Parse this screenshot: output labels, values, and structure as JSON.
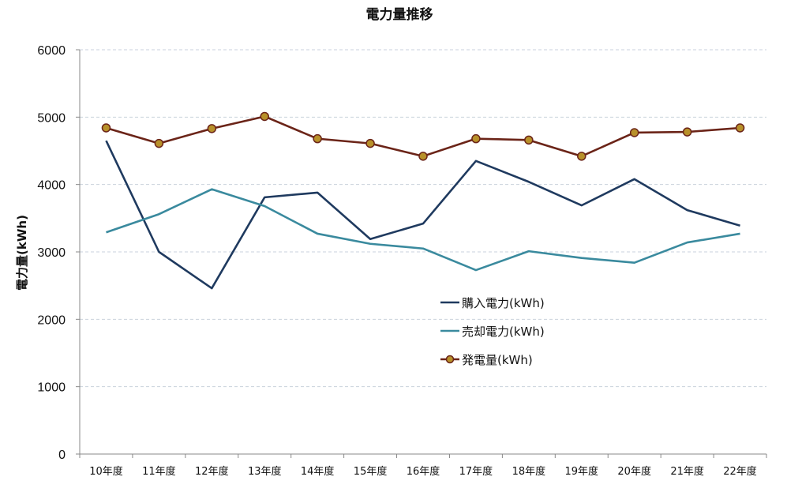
{
  "chart_data": {
    "type": "line",
    "title": "電力量推移",
    "xlabel": "",
    "ylabel": "電力量(kWh)",
    "ylim": [
      0,
      6000
    ],
    "yticks": [
      0,
      1000,
      2000,
      3000,
      4000,
      5000,
      6000
    ],
    "grid": "horizontal dashed",
    "legend_position": "center-right",
    "categories": [
      "10年度",
      "11年度",
      "12年度",
      "13年度",
      "14年度",
      "15年度",
      "16年度",
      "17年度",
      "18年度",
      "19年度",
      "20年度",
      "21年度",
      "22年度"
    ],
    "series": [
      {
        "name": "購入電力(kWh)",
        "color": "#1f3a5f",
        "marker": "none",
        "values": [
          4650,
          3000,
          2460,
          3810,
          3880,
          3190,
          3420,
          4350,
          4040,
          3690,
          4080,
          3620,
          3390
        ]
      },
      {
        "name": "売却電力(kWh)",
        "color": "#3a8a9e",
        "marker": "none",
        "values": [
          3290,
          3560,
          3930,
          3680,
          3270,
          3120,
          3050,
          2730,
          3010,
          2910,
          2840,
          3140,
          3270
        ]
      },
      {
        "name": "発電量(kWh)",
        "color": "#6b2418",
        "marker": "circle",
        "marker_color": "#b8912a",
        "values": [
          4840,
          4610,
          4830,
          5010,
          4680,
          4610,
          4420,
          4680,
          4660,
          4420,
          4770,
          4780,
          4840
        ]
      }
    ]
  }
}
